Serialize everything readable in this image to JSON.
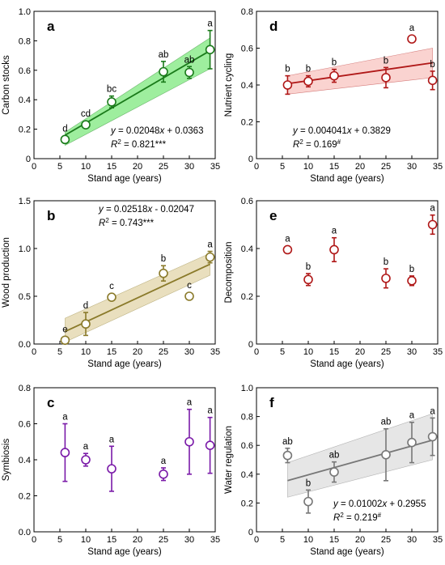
{
  "chart_data": [
    {
      "type": "scatter",
      "panel_letter": "a",
      "color": "#1a7a1a",
      "band_color": "#7ee87e",
      "marker_fill": "#ffffff",
      "xlabel": "Stand age (years)",
      "ylabel": "Carbon stocks",
      "xlim": [
        0,
        35
      ],
      "ylim": [
        0,
        1.0
      ],
      "xticks": [
        0,
        5,
        10,
        15,
        20,
        25,
        30,
        35
      ],
      "yticks": [
        0,
        0.2,
        0.4,
        0.6,
        0.8,
        1.0
      ],
      "ytick_labels": [
        "0",
        "0.2",
        "0.4",
        "0.6",
        "0.8",
        "1.0"
      ],
      "x": [
        6,
        10,
        15,
        25,
        30,
        34
      ],
      "y": [
        0.13,
        0.23,
        0.385,
        0.59,
        0.585,
        0.74
      ],
      "err": [
        0.02,
        0.02,
        0.04,
        0.07,
        0.04,
        0.13
      ],
      "letters": [
        "d",
        "cd",
        "bc",
        "ab",
        "ab",
        "a"
      ],
      "fit": {
        "slope": 0.02048,
        "intercept": 0.0363,
        "band_low": [
          0.09,
          0.61
        ],
        "band_high": [
          0.18,
          0.82
        ]
      },
      "equation": "y = 0.02048x + 0.0363",
      "r2_value": " = 0.821***",
      "r2_sup": "",
      "eq_pos": "bottom-right"
    },
    {
      "type": "scatter",
      "panel_letter": "d",
      "color": "#b01818",
      "band_color": "#f8c4c0",
      "marker_fill": "#ffffff",
      "xlabel": "Stand age (years)",
      "ylabel": "Nutrient cycling",
      "xlim": [
        0,
        35
      ],
      "ylim": [
        0,
        0.8
      ],
      "xticks": [
        0,
        5,
        10,
        15,
        20,
        25,
        30,
        35
      ],
      "yticks": [
        0,
        0.2,
        0.4,
        0.6,
        0.8
      ],
      "ytick_labels": [
        "0",
        "0.2",
        "0.4",
        "0.6",
        "0.8"
      ],
      "x": [
        6,
        10,
        15,
        25,
        30,
        34
      ],
      "y": [
        0.4,
        0.42,
        0.45,
        0.44,
        0.65,
        0.425
      ],
      "err": [
        0.05,
        0.03,
        0.035,
        0.055,
        0.0,
        0.05
      ],
      "letters": [
        "b",
        "b",
        "b",
        "b",
        "a",
        "b"
      ],
      "fit": {
        "slope": 0.004041,
        "intercept": 0.3829,
        "band_low": [
          0.35,
          0.44
        ],
        "band_high": [
          0.45,
          0.6
        ]
      },
      "equation": "y = 0.004041x + 0.3829",
      "r2_value": " = 0.169",
      "r2_sup": "#",
      "eq_pos": "bottom-left"
    },
    {
      "type": "scatter",
      "panel_letter": "b",
      "color": "#8a7a2a",
      "band_color": "#e2d4a8",
      "marker_fill": "#ffffff",
      "xlabel": "Stand age (years)",
      "ylabel": "Wood production",
      "xlim": [
        0,
        35
      ],
      "ylim": [
        0,
        1.5
      ],
      "xticks": [
        0,
        5,
        10,
        15,
        20,
        25,
        30,
        35
      ],
      "yticks": [
        0,
        0.5,
        1.0,
        1.5
      ],
      "ytick_labels": [
        "0.0",
        "0.5",
        "1.0",
        "1.5"
      ],
      "x": [
        6,
        10,
        15,
        25,
        30,
        34
      ],
      "y": [
        0.04,
        0.21,
        0.49,
        0.74,
        0.5,
        0.91
      ],
      "err": [
        0.03,
        0.12,
        0.03,
        0.08,
        0.03,
        0.06
      ],
      "letters": [
        "e",
        "d",
        "c",
        "b",
        "c",
        "a"
      ],
      "fit": {
        "slope": 0.02518,
        "intercept": -0.02047,
        "band_low": [
          0.02,
          0.72
        ],
        "band_high": [
          0.27,
          0.95
        ]
      },
      "equation": "y = 0.02518x - 0.02047",
      "r2_value": " = 0.743***",
      "r2_sup": "",
      "eq_pos": "top-right"
    },
    {
      "type": "scatter",
      "panel_letter": "e",
      "color": "#b01818",
      "band_color": "",
      "marker_fill": "#ffffff",
      "xlabel": "Stand age (years)",
      "ylabel": "Decomposition",
      "xlim": [
        0,
        35
      ],
      "ylim": [
        0,
        0.6
      ],
      "xticks": [
        0,
        5,
        10,
        15,
        20,
        25,
        30,
        35
      ],
      "yticks": [
        0,
        0.2,
        0.4,
        0.6
      ],
      "ytick_labels": [
        "0",
        "0.2",
        "0.4",
        "0.6"
      ],
      "x": [
        6,
        10,
        15,
        25,
        30,
        34
      ],
      "y": [
        0.395,
        0.27,
        0.395,
        0.275,
        0.265,
        0.5
      ],
      "err": [
        0.0,
        0.025,
        0.05,
        0.04,
        0.02,
        0.04
      ],
      "letters": [
        "a",
        "b",
        "a",
        "b",
        "b",
        "a"
      ],
      "fit": null,
      "equation": "",
      "r2_value": "",
      "r2_sup": "",
      "eq_pos": ""
    },
    {
      "type": "scatter",
      "panel_letter": "c",
      "color": "#7a1aa8",
      "band_color": "",
      "marker_fill": "#ffffff",
      "xlabel": "Stand age (years)",
      "ylabel": "Symbiosis",
      "xlim": [
        0,
        35
      ],
      "ylim": [
        0,
        0.8
      ],
      "xticks": [
        0,
        5,
        10,
        15,
        20,
        25,
        30,
        35
      ],
      "yticks": [
        0,
        0.2,
        0.4,
        0.6,
        0.8
      ],
      "ytick_labels": [
        "0.0",
        "0.2",
        "0.4",
        "0.6",
        "0.8"
      ],
      "x": [
        6,
        10,
        15,
        25,
        30,
        34
      ],
      "y": [
        0.44,
        0.4,
        0.35,
        0.32,
        0.5,
        0.48
      ],
      "err": [
        0.16,
        0.035,
        0.125,
        0.035,
        0.18,
        0.155
      ],
      "letters": [
        "a",
        "a",
        "a",
        "a",
        "a",
        "a"
      ],
      "fit": null,
      "equation": "",
      "r2_value": "",
      "r2_sup": "",
      "eq_pos": ""
    },
    {
      "type": "scatter",
      "panel_letter": "f",
      "color": "#777777",
      "band_color": "#dddddd",
      "marker_fill": "#ffffff",
      "xlabel": "Stand age (years)",
      "ylabel": "Water regulation",
      "xlim": [
        0,
        35
      ],
      "ylim": [
        0,
        1.0
      ],
      "xticks": [
        0,
        5,
        10,
        15,
        20,
        25,
        30,
        35
      ],
      "yticks": [
        0,
        0.2,
        0.4,
        0.6,
        0.8,
        1.0
      ],
      "ytick_labels": [
        "0",
        "0.2",
        "0.4",
        "0.6",
        "0.8",
        "1.0"
      ],
      "x": [
        6,
        10,
        15,
        25,
        30,
        34
      ],
      "y": [
        0.53,
        0.21,
        0.415,
        0.535,
        0.62,
        0.66
      ],
      "err": [
        0.05,
        0.08,
        0.07,
        0.18,
        0.14,
        0.13
      ],
      "letters": [
        "ab",
        "b",
        "ab",
        "ab",
        "a",
        "a"
      ],
      "fit": {
        "slope": 0.01002,
        "intercept": 0.2955,
        "band_low": [
          0.24,
          0.5
        ],
        "band_high": [
          0.48,
          0.82
        ]
      },
      "equation": "y = 0.01002x + 0.2955",
      "r2_value": " = 0.219",
      "r2_sup": "#",
      "eq_pos": "bottom-right"
    }
  ]
}
